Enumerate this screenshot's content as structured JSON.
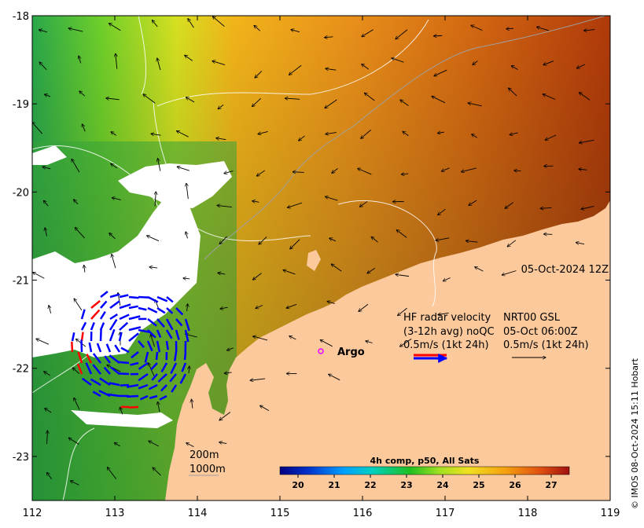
{
  "map": {
    "lon_ticks": [
      "112",
      "113",
      "114",
      "115",
      "116",
      "117",
      "118",
      "119"
    ],
    "lat_ticks": [
      "-18",
      "-19",
      "-20",
      "-21",
      "-22",
      "-23"
    ],
    "lon_range": [
      112,
      119
    ],
    "lat_range": [
      -23.5,
      -18
    ],
    "timestamp": "05-Oct-2024 12Z",
    "argo_label": "Argo",
    "legend": {
      "line1_left": "HF radar velocity",
      "line1_right": "NRT00 GSL",
      "line2_left": "(3-12h avg) noQC",
      "line2_right": "05-Oct 06:00Z",
      "line3_left": "0.5m/s (1kt 24h)",
      "line3_right": "0.5m/s (1kt 24h)"
    },
    "isobaths": [
      "200m",
      "1000m"
    ],
    "colorbar": {
      "title": "4h comp, p50, All Sats",
      "ticks": [
        "20",
        "21",
        "22",
        "23",
        "24",
        "25",
        "26",
        "27"
      ],
      "range": [
        19.5,
        27.5
      ]
    },
    "credit": "© IMOS 08-Oct-2024 15:11 Hobart",
    "colors": {
      "land": "#fbc99c",
      "hf_radar": "#0000ff",
      "hf_radar_edge": "#ff0000",
      "argo_marker": "#ff00ff"
    }
  }
}
